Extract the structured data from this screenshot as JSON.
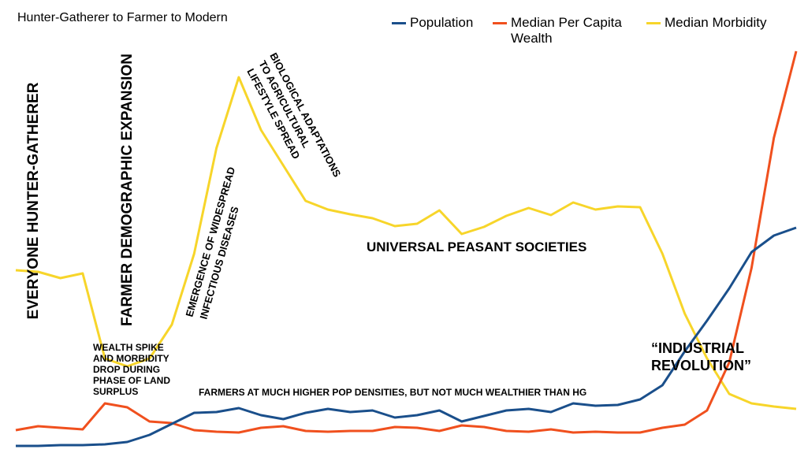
{
  "chart_data": {
    "type": "line",
    "title": "Hunter-Gatherer to Farmer to Modern",
    "categories": [
      null,
      null,
      null,
      null,
      null,
      null,
      null,
      null,
      null,
      null,
      null,
      null,
      null,
      null,
      null,
      null,
      null,
      null,
      null,
      null,
      null,
      null,
      null,
      null,
      null,
      null,
      null,
      null,
      null,
      null,
      null,
      null,
      null,
      null,
      null,
      null
    ],
    "ylim": [
      0,
      560
    ],
    "series": [
      {
        "name": "Population",
        "color": "#1a4f8b",
        "values": [
          1,
          1,
          2,
          2,
          3,
          6,
          15,
          29,
          43,
          44,
          49,
          40,
          35,
          43,
          48,
          44,
          46,
          37,
          40,
          46,
          32,
          39,
          46,
          48,
          44,
          55,
          52,
          53,
          60,
          78,
          121,
          160,
          201,
          247,
          268,
          278
        ]
      },
      {
        "name": "Median Per Capita Wealth",
        "color": "#f0501e",
        "values": [
          21,
          26,
          24,
          22,
          55,
          50,
          32,
          30,
          21,
          19,
          18,
          24,
          26,
          20,
          19,
          20,
          20,
          25,
          24,
          20,
          27,
          25,
          20,
          19,
          22,
          18,
          19,
          18,
          18,
          24,
          28,
          46,
          107,
          227,
          392,
          502
        ]
      },
      {
        "name": "Median Morbidity",
        "color": "#f7d52a",
        "values": [
          224,
          222,
          214,
          220,
          112,
          102,
          112,
          155,
          245,
          379,
          469,
          402,
          357,
          312,
          301,
          295,
          290,
          280,
          283,
          300,
          270,
          279,
          293,
          303,
          294,
          310,
          301,
          305,
          304,
          245,
          169,
          112,
          67,
          55,
          51,
          48
        ]
      }
    ],
    "annotations": [
      [
        "EVERYONE HUNTER-GATHERER"
      ],
      [
        "FARMER DEMOGRAPHIC EXPANSION"
      ],
      [
        "WEALTH SPIKE",
        "AND MORBIDITY",
        "DROP DURING",
        "PHASE OF LAND",
        "SURPLUS"
      ],
      [
        "EMERGENCE OF WIDESPREAD",
        "INFECTIOUS DISEASES"
      ],
      [
        "BIOLOGICAL ADAPTATIONS",
        "TO AGRICULTURAL",
        "LIFESTYLE SPREAD"
      ],
      [
        "UNIVERSAL PEASANT SOCIETIES"
      ],
      [
        "FARMERS AT MUCH HIGHER POP DENSITIES, BUT NOT MUCH WEALTHIER THAN HG"
      ],
      [
        "“INDUSTRIAL",
        "REVOLUTION”"
      ]
    ]
  }
}
